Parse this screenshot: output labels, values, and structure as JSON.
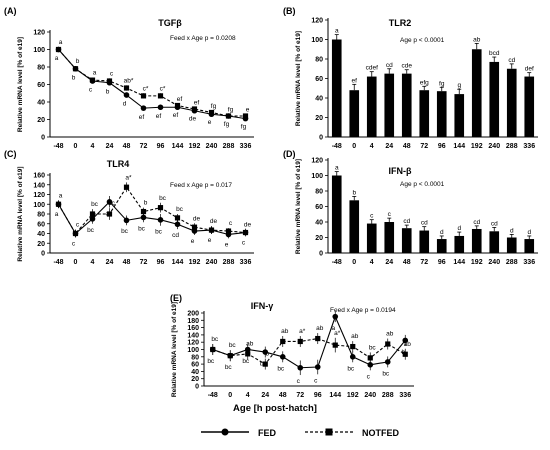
{
  "x_axis_title": "Age [h post-hatch]",
  "legend": {
    "fed": "FED",
    "notfed": "NOTFED"
  },
  "chart_data": [
    {
      "panel": "(A)",
      "title": "TGFβ",
      "type": "line",
      "ylabel": "Relative mRNA level [% of e19]",
      "annotation": "Feed x Age p = 0.0208",
      "ylim": [
        0,
        120
      ],
      "yticks": [
        0,
        20,
        40,
        60,
        80,
        100,
        120
      ],
      "x": [
        "-48",
        "0",
        "4",
        "24",
        "48",
        "72",
        "96",
        "144",
        "192",
        "240",
        "288",
        "336"
      ],
      "series": [
        {
          "name": "FED",
          "values": [
            100,
            78,
            64,
            62,
            48,
            33,
            34,
            34,
            30,
            26,
            24,
            21
          ],
          "errors": [
            3,
            3,
            3,
            3,
            3,
            3,
            3,
            2,
            2,
            2,
            2,
            2
          ],
          "labels": [
            "a",
            "b",
            "c",
            "b",
            "d",
            "ef",
            "ef",
            "ef",
            "de",
            "e",
            "fg",
            "fg"
          ]
        },
        {
          "name": "NOTFED",
          "values": [
            100,
            78,
            65,
            64,
            56,
            47,
            47,
            36,
            32,
            28,
            24,
            24
          ],
          "errors": [
            3,
            3,
            3,
            3,
            3,
            3,
            3,
            2,
            2,
            2,
            2,
            2
          ],
          "labels": [
            "a",
            "b",
            "a",
            "c",
            "ab*",
            "c*",
            "c*",
            "ef",
            "ef",
            "fg",
            "fg",
            "e"
          ]
        }
      ]
    },
    {
      "panel": "(B)",
      "title": "TLR2",
      "type": "bar",
      "ylabel": "Relative mRNA level [% of e19]",
      "annotation": "Age p < 0.0001",
      "ylim": [
        0,
        120
      ],
      "yticks": [
        0,
        20,
        40,
        60,
        80,
        100,
        120
      ],
      "categories": [
        "-48",
        "0",
        "4",
        "24",
        "48",
        "72",
        "96",
        "144",
        "192",
        "240",
        "288",
        "336"
      ],
      "values": [
        100,
        48,
        62,
        65,
        65,
        48,
        47,
        44,
        90,
        77,
        70,
        62
      ],
      "errors": [
        5,
        6,
        5,
        5,
        4,
        4,
        4,
        5,
        6,
        5,
        5,
        4
      ],
      "labels": [
        "a",
        "ef",
        "cdef",
        "cd",
        "cde",
        "efg",
        "fg",
        "g",
        "ab",
        "bcd",
        "cd",
        "def"
      ]
    },
    {
      "panel": "(C)",
      "title": "TLR4",
      "type": "line",
      "ylabel": "Relative mRNA level [% of e19]",
      "annotation": "Feed x Age p = 0.017",
      "ylim": [
        0,
        160
      ],
      "yticks": [
        0,
        20,
        40,
        60,
        80,
        100,
        120,
        140,
        160
      ],
      "x": [
        "-48",
        "0",
        "4",
        "24",
        "48",
        "72",
        "96",
        "144",
        "192",
        "240",
        "288",
        "336"
      ],
      "series": [
        {
          "name": "FED",
          "values": [
            100,
            40,
            70,
            105,
            67,
            73,
            68,
            59,
            45,
            47,
            38,
            42
          ],
          "errors": [
            8,
            8,
            10,
            12,
            10,
            10,
            12,
            10,
            8,
            8,
            8,
            8
          ],
          "labels": [
            "a",
            "c",
            "bc",
            "a",
            "bc",
            "bc",
            "bc",
            "cd",
            "e",
            "e",
            "e",
            "c"
          ]
        },
        {
          "name": "NOTFED",
          "values": [
            100,
            40,
            80,
            80,
            135,
            85,
            93,
            72,
            53,
            47,
            45,
            42
          ],
          "errors": [
            8,
            8,
            10,
            12,
            10,
            8,
            10,
            8,
            8,
            8,
            6,
            6
          ],
          "labels": [
            "a",
            "c",
            "bc",
            "bc",
            "a*",
            "b",
            "bc",
            "bc",
            "de",
            "de",
            "c",
            "de"
          ]
        }
      ]
    },
    {
      "panel": "(D)",
      "title": "IFN-β",
      "type": "bar",
      "ylabel": "Relative mRNA level [% of e19]",
      "annotation": "Age p < 0.0001",
      "ylim": [
        0,
        120
      ],
      "yticks": [
        0,
        20,
        40,
        60,
        80,
        100,
        120
      ],
      "categories": [
        "-48",
        "0",
        "4",
        "24",
        "48",
        "72",
        "96",
        "144",
        "192",
        "240",
        "288",
        "336"
      ],
      "values": [
        100,
        68,
        38,
        40,
        32,
        29,
        18,
        22,
        31,
        28,
        20,
        18
      ],
      "errors": [
        5,
        5,
        5,
        5,
        4,
        5,
        4,
        5,
        4,
        5,
        4,
        4
      ],
      "labels": [
        "a",
        "b",
        "c",
        "c",
        "cd",
        "cd",
        "d",
        "d",
        "cd",
        "cd",
        "d",
        "d"
      ]
    },
    {
      "panel": "(E)",
      "title": "IFN-γ",
      "type": "line",
      "ylabel": "Relative mRNA level [% of e19]",
      "annotation": "Feed x Age p = 0.0194",
      "ylim": [
        0,
        200
      ],
      "yticks": [
        0,
        20,
        40,
        60,
        80,
        100,
        120,
        140,
        160,
        180,
        200
      ],
      "x": [
        "-48",
        "0",
        "4",
        "24",
        "48",
        "72",
        "96",
        "144",
        "192",
        "240",
        "288",
        "336"
      ],
      "series": [
        {
          "name": "FED",
          "values": [
            100,
            83,
            100,
            93,
            80,
            50,
            52,
            190,
            80,
            58,
            66,
            125
          ],
          "errors": [
            15,
            15,
            15,
            15,
            15,
            20,
            20,
            15,
            15,
            15,
            15,
            15
          ],
          "labels": [
            "bc",
            "bc",
            "bc",
            "bc",
            "bc",
            "c",
            "c",
            "a",
            "bc",
            "c",
            "bc",
            "b"
          ]
        },
        {
          "name": "NOTFED",
          "values": [
            100,
            83,
            88,
            60,
            122,
            122,
            130,
            112,
            108,
            77,
            115,
            87
          ],
          "errors": [
            15,
            15,
            15,
            15,
            15,
            15,
            15,
            20,
            15,
            15,
            15,
            15
          ],
          "labels": [
            "bc",
            "bc",
            "ab",
            "b",
            "ab",
            "a*",
            "ab",
            "a*",
            "ab",
            "bc",
            "ab",
            "ab"
          ]
        }
      ]
    }
  ]
}
